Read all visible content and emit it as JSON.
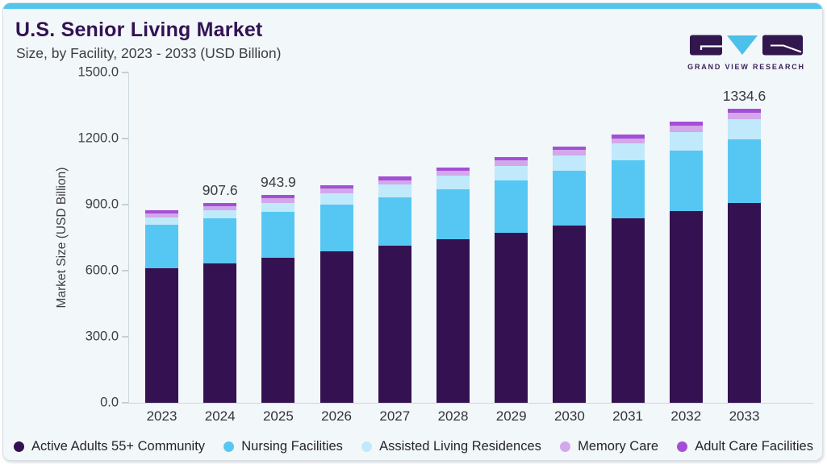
{
  "header": {
    "title": "U.S. Senior Living Market",
    "subtitle": "Size, by Facility, 2023 - 2033 (USD Billion)"
  },
  "logo": {
    "brand": "GRAND VIEW RESEARCH"
  },
  "colors": {
    "accent_top_bar": "#54c6ee",
    "card_background": "#f2f7fa",
    "title_text": "#331254",
    "axis_line": "#ccd6de",
    "logo_dark": "#32174e",
    "logo_blue": "#4ac0ea"
  },
  "chart_data": {
    "type": "bar",
    "stacked": true,
    "title": "U.S. Senior Living Market Size, by Facility, 2023 - 2033 (USD Billion)",
    "xlabel": "",
    "ylabel": "Market Size (USD Billion)",
    "ylim": [
      0,
      1500
    ],
    "yticks": [
      0,
      300,
      600,
      900,
      1200,
      1500
    ],
    "ytick_labels": [
      "0.0",
      "300.0",
      "600.0",
      "900.0",
      "1200.0",
      "1500.0"
    ],
    "grid": false,
    "legend_position": "bottom",
    "categories": [
      "2023",
      "2024",
      "2025",
      "2026",
      "2027",
      "2028",
      "2029",
      "2030",
      "2031",
      "2032",
      "2033"
    ],
    "series": [
      {
        "name": "Active Adults 55+ Community",
        "color": "#341150",
        "values": [
          610.0,
          633.5,
          659.7,
          687.0,
          715.0,
          742.4,
          772.0,
          804.0,
          837.3,
          870.3,
          908.2
        ]
      },
      {
        "name": "Nursing Facilities",
        "color": "#56c7f2",
        "values": [
          197.5,
          203.7,
          206.0,
          211.9,
          219.3,
          228.6,
          239.4,
          248.6,
          262.7,
          274.7,
          290.0
        ]
      },
      {
        "name": "Assisted Living Residences",
        "color": "#c0e9fb",
        "values": [
          35.5,
          35.5,
          42.5,
          53.1,
          56.7,
          61.6,
          66.0,
          72.4,
          78.3,
          85.2,
          91.3
        ]
      },
      {
        "name": "Memory Care",
        "color": "#d2a8ea",
        "values": [
          17.7,
          20.1,
          21.3,
          21.3,
          20.0,
          20.0,
          22.6,
          23.5,
          22.4,
          27.4,
          27.2
        ]
      },
      {
        "name": "Adult Care Facilities",
        "color": "#a44fd6",
        "values": [
          14.3,
          14.8,
          14.4,
          14.2,
          15.6,
          15.4,
          15.5,
          15.5,
          17.8,
          17.7,
          17.9
        ]
      }
    ],
    "totals": [
      875.0,
      907.6,
      943.9,
      987.5,
      1026.6,
      1068.0,
      1115.5,
      1164.0,
      1218.5,
      1275.3,
      1334.6
    ],
    "value_labels": [
      "",
      "907.6",
      "943.9",
      "",
      "",
      "",
      "",
      "",
      "",
      "",
      "1334.6"
    ]
  }
}
